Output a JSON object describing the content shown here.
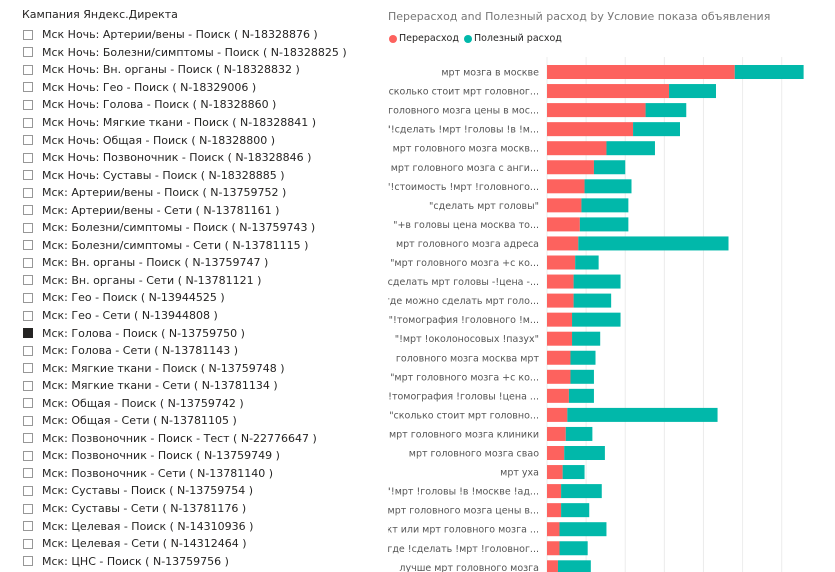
{
  "slicer": {
    "title": "Кампания Яндекс.Директа",
    "items": [
      {
        "label": "Мск Ночь: Артерии/вены - Поиск ( N-18328876 )",
        "checked": false
      },
      {
        "label": "Мск Ночь: Болезни/симптомы - Поиск ( N-18328825 )",
        "checked": false
      },
      {
        "label": "Мск Ночь: Вн. органы - Поиск ( N-18328832 )",
        "checked": false
      },
      {
        "label": "Мск Ночь: Гео - Поиск ( N-18329006 )",
        "checked": false
      },
      {
        "label": "Мск Ночь: Голова - Поиск ( N-18328860 )",
        "checked": false
      },
      {
        "label": "Мск Ночь: Мягкие ткани - Поиск ( N-18328841 )",
        "checked": false
      },
      {
        "label": "Мск Ночь: Общая - Поиск ( N-18328800 )",
        "checked": false
      },
      {
        "label": "Мск Ночь: Позвоночник - Поиск ( N-18328846 )",
        "checked": false
      },
      {
        "label": "Мск Ночь: Суставы - Поиск ( N-18328885 )",
        "checked": false
      },
      {
        "label": "Мск: Артерии/вены - Поиск ( N-13759752 )",
        "checked": false
      },
      {
        "label": "Мск: Артерии/вены - Сети ( N-13781161 )",
        "checked": false
      },
      {
        "label": "Мск: Болезни/симптомы - Поиск ( N-13759743 )",
        "checked": false
      },
      {
        "label": "Мск: Болезни/симптомы - Сети ( N-13781115 )",
        "checked": false
      },
      {
        "label": "Мск: Вн. органы - Поиск ( N-13759747 )",
        "checked": false
      },
      {
        "label": "Мск: Вн. органы - Сети ( N-13781121 )",
        "checked": false
      },
      {
        "label": "Мск: Гео - Поиск ( N-13944525 )",
        "checked": false
      },
      {
        "label": "Мск: Гео - Сети ( N-13944808 )",
        "checked": false
      },
      {
        "label": "Мск: Голова - Поиск ( N-13759750 )",
        "checked": true
      },
      {
        "label": "Мск: Голова - Сети ( N-13781143 )",
        "checked": false
      },
      {
        "label": "Мск: Мягкие ткани - Поиск ( N-13759748 )",
        "checked": false
      },
      {
        "label": "Мск: Мягкие ткани - Сети ( N-13781134 )",
        "checked": false
      },
      {
        "label": "Мск: Общая - Поиск ( N-13759742 )",
        "checked": false
      },
      {
        "label": "Мск: Общая - Сети ( N-13781105 )",
        "checked": false
      },
      {
        "label": "Мск: Позвоночник - Поиск - Тест ( N-22776647 )",
        "checked": false
      },
      {
        "label": "Мск: Позвоночник - Поиск ( N-13759749 )",
        "checked": false
      },
      {
        "label": "Мск: Позвоночник - Сети ( N-13781140 )",
        "checked": false
      },
      {
        "label": "Мск: Суставы - Поиск ( N-13759754 )",
        "checked": false
      },
      {
        "label": "Мск: Суставы - Сети ( N-13781176 )",
        "checked": false
      },
      {
        "label": "Мск: Целевая - Поиск ( N-14310936 )",
        "checked": false
      },
      {
        "label": "Мск: Целевая - Сети ( N-14312464 )",
        "checked": false
      },
      {
        "label": "Мск: ЦНС - Поиск ( N-13759756 )",
        "checked": false
      }
    ]
  },
  "chart": {
    "title": "Перерасход and Полезный расход by Условие показа объявления",
    "legend": [
      {
        "label": "Перерасход",
        "color": "#FD625E"
      },
      {
        "label": "Полезный расход",
        "color": "#01B8AA"
      }
    ]
  },
  "chart_data": {
    "type": "bar",
    "orientation": "horizontal",
    "stacked": true,
    "title": "Перерасход and Полезный расход by Условие показа объявления",
    "categories": [
      "мрт мозга в москве",
      "сколько стоит мрт головног...",
      "головного мозга цены в мос...",
      "\"!сделать !мрт !головы !в !м...",
      "мрт головного мозга москв...",
      "мрт головного мозга с анги...",
      "\"!стоимость !мрт !головного...",
      "\"сделать мрт головы\"",
      "\"+в головы цена москва то...",
      "мрт головного мозга адреса",
      "\"мрт головного мозга +с ко...",
      "сделать мрт головы -!цена -...",
      "где можно сделать мрт голо...",
      "\"!томография !головного !м...",
      "\"!мрт !околоносовых !пазух\"",
      "головного мозга москва мрт",
      "\"мрт головного мозга +с ко...",
      "\"!томография !головы !цена ...",
      "\"сколько стоит мрт головно...",
      "мрт головного мозга клиники",
      "мрт головного мозга свао",
      "мрт уха",
      "\"!мрт !головы !в !москве !ад...",
      "мрт головного мозга цены в...",
      "кт или мрт головного мозга ...",
      "\"!где !сделать !мрт !головног...",
      "лучше мрт головного мозга"
    ],
    "series": [
      {
        "name": "Перерасход",
        "color": "#FD625E",
        "values": [
          120,
          78,
          63,
          55,
          38,
          30,
          24,
          22,
          21,
          20,
          18,
          17,
          17,
          16,
          16,
          15,
          15,
          14,
          13,
          12,
          11,
          10,
          9,
          9,
          8,
          8,
          7
        ]
      },
      {
        "name": "Полезный расход",
        "color": "#01B8AA",
        "values": [
          44,
          30,
          26,
          30,
          31,
          20,
          30,
          30,
          31,
          96,
          15,
          30,
          24,
          31,
          18,
          16,
          15,
          16,
          96,
          17,
          26,
          14,
          26,
          18,
          30,
          18,
          21
        ]
      }
    ],
    "xlim": [
      0,
      170
    ],
    "grid": true,
    "legend_position": "top-left"
  }
}
